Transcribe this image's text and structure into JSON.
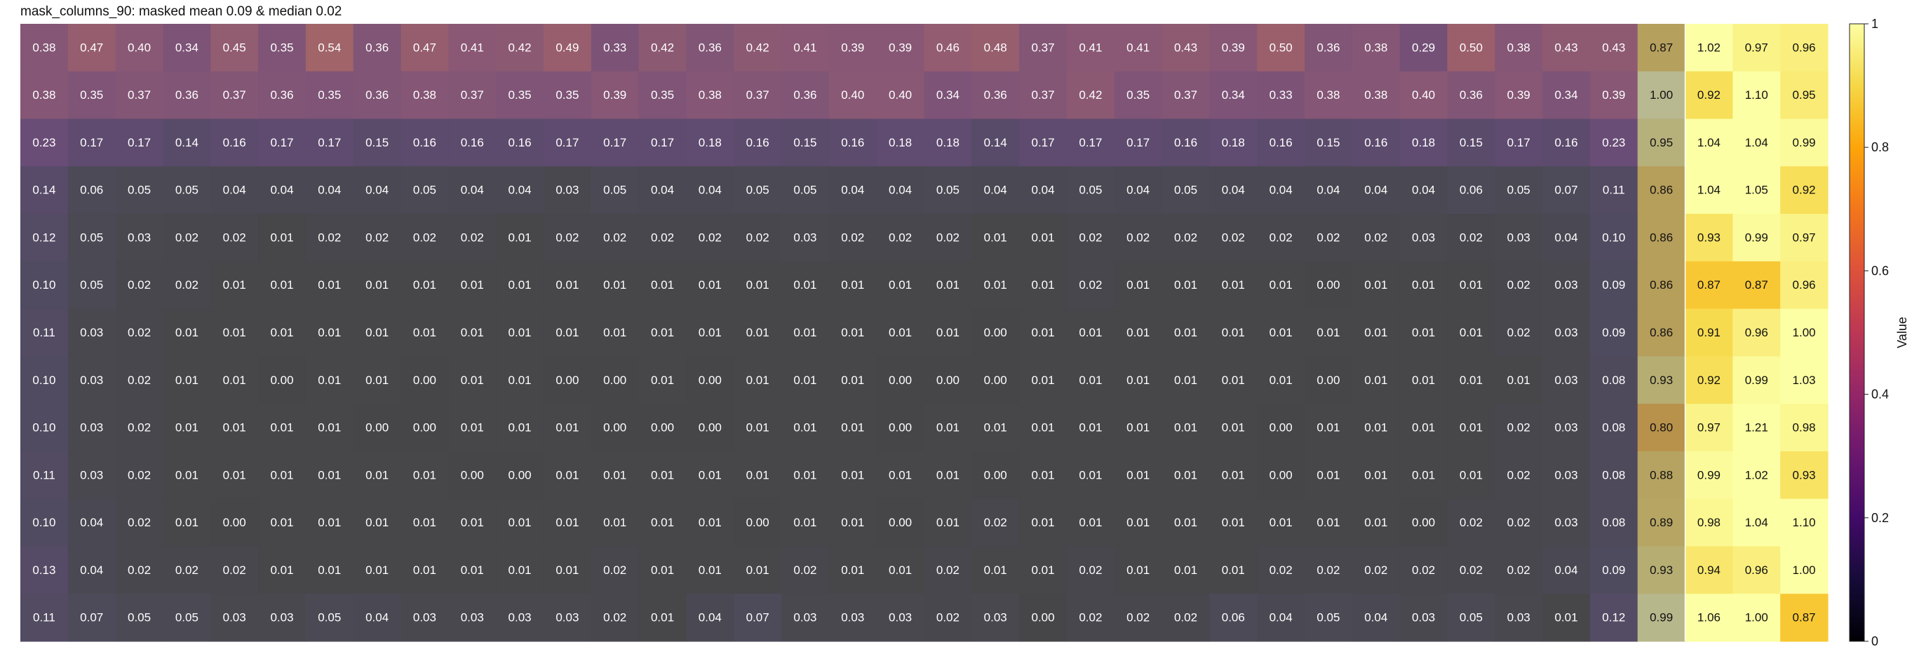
{
  "chart_data": {
    "type": "heatmap",
    "title": "mask_columns_90: masked mean 0.09 & median 0.02",
    "colormap": "inferno",
    "clim": [
      0,
      1
    ],
    "masked_overlay": {
      "columns_masked": 35,
      "overlay_color": "#808080",
      "overlay_opacity": 0.55
    },
    "values": [
      [
        0.38,
        0.47,
        0.4,
        0.34,
        0.45,
        0.35,
        0.54,
        0.36,
        0.47,
        0.41,
        0.42,
        0.49,
        0.33,
        0.42,
        0.36,
        0.42,
        0.41,
        0.39,
        0.39,
        0.46,
        0.48,
        0.37,
        0.41,
        0.41,
        0.43,
        0.39,
        0.5,
        0.36,
        0.38,
        0.29,
        0.5,
        0.38,
        0.43,
        0.43,
        0.87,
        1.02,
        0.97,
        0.96
      ],
      [
        0.38,
        0.35,
        0.37,
        0.36,
        0.37,
        0.36,
        0.35,
        0.36,
        0.38,
        0.37,
        0.35,
        0.35,
        0.39,
        0.35,
        0.38,
        0.37,
        0.36,
        0.4,
        0.4,
        0.34,
        0.36,
        0.37,
        0.42,
        0.35,
        0.37,
        0.34,
        0.33,
        0.38,
        0.38,
        0.4,
        0.36,
        0.39,
        0.34,
        0.39,
        1.0,
        0.92,
        1.1,
        0.95
      ],
      [
        0.23,
        0.17,
        0.17,
        0.14,
        0.16,
        0.17,
        0.17,
        0.15,
        0.16,
        0.16,
        0.16,
        0.17,
        0.17,
        0.17,
        0.18,
        0.16,
        0.15,
        0.16,
        0.18,
        0.18,
        0.14,
        0.17,
        0.17,
        0.17,
        0.16,
        0.18,
        0.16,
        0.15,
        0.16,
        0.18,
        0.15,
        0.17,
        0.16,
        0.23,
        0.95,
        1.04,
        1.04,
        0.99
      ],
      [
        0.14,
        0.06,
        0.05,
        0.05,
        0.04,
        0.04,
        0.04,
        0.04,
        0.05,
        0.04,
        0.04,
        0.03,
        0.05,
        0.04,
        0.04,
        0.05,
        0.05,
        0.04,
        0.04,
        0.05,
        0.04,
        0.04,
        0.05,
        0.04,
        0.05,
        0.04,
        0.04,
        0.04,
        0.04,
        0.04,
        0.06,
        0.05,
        0.07,
        0.11,
        0.86,
        1.04,
        1.05,
        0.92
      ],
      [
        0.12,
        0.05,
        0.03,
        0.02,
        0.02,
        0.01,
        0.02,
        0.02,
        0.02,
        0.02,
        0.01,
        0.02,
        0.02,
        0.02,
        0.02,
        0.02,
        0.03,
        0.02,
        0.02,
        0.02,
        0.01,
        0.01,
        0.02,
        0.02,
        0.02,
        0.02,
        0.02,
        0.02,
        0.02,
        0.03,
        0.02,
        0.03,
        0.04,
        0.1,
        0.86,
        0.93,
        0.99,
        0.97
      ],
      [
        0.1,
        0.05,
        0.02,
        0.02,
        0.01,
        0.01,
        0.01,
        0.01,
        0.01,
        0.01,
        0.01,
        0.01,
        0.01,
        0.01,
        0.01,
        0.01,
        0.01,
        0.01,
        0.01,
        0.01,
        0.01,
        0.01,
        0.02,
        0.01,
        0.01,
        0.01,
        0.01,
        0.0,
        0.01,
        0.01,
        0.01,
        0.02,
        0.03,
        0.09,
        0.86,
        0.87,
        0.87,
        0.96
      ],
      [
        0.11,
        0.03,
        0.02,
        0.01,
        0.01,
        0.01,
        0.01,
        0.01,
        0.01,
        0.01,
        0.01,
        0.01,
        0.01,
        0.01,
        0.01,
        0.01,
        0.01,
        0.01,
        0.01,
        0.01,
        0.0,
        0.01,
        0.01,
        0.01,
        0.01,
        0.01,
        0.01,
        0.01,
        0.01,
        0.01,
        0.01,
        0.02,
        0.03,
        0.09,
        0.86,
        0.91,
        0.96,
        1.0
      ],
      [
        0.1,
        0.03,
        0.02,
        0.01,
        0.01,
        0.0,
        0.01,
        0.01,
        0.0,
        0.01,
        0.01,
        0.0,
        0.0,
        0.01,
        0.0,
        0.01,
        0.01,
        0.01,
        0.0,
        0.0,
        0.0,
        0.01,
        0.01,
        0.01,
        0.01,
        0.01,
        0.01,
        0.0,
        0.01,
        0.01,
        0.01,
        0.01,
        0.03,
        0.08,
        0.93,
        0.92,
        0.99,
        1.03
      ],
      [
        0.1,
        0.03,
        0.02,
        0.01,
        0.01,
        0.01,
        0.01,
        0.0,
        0.0,
        0.01,
        0.01,
        0.01,
        0.0,
        0.0,
        0.0,
        0.01,
        0.01,
        0.01,
        0.0,
        0.01,
        0.01,
        0.01,
        0.01,
        0.01,
        0.01,
        0.01,
        0.0,
        0.01,
        0.01,
        0.01,
        0.01,
        0.02,
        0.03,
        0.08,
        0.8,
        0.97,
        1.21,
        0.98
      ],
      [
        0.11,
        0.03,
        0.02,
        0.01,
        0.01,
        0.01,
        0.01,
        0.01,
        0.01,
        0.0,
        0.0,
        0.01,
        0.01,
        0.01,
        0.01,
        0.01,
        0.01,
        0.01,
        0.01,
        0.01,
        0.0,
        0.01,
        0.01,
        0.01,
        0.01,
        0.01,
        0.0,
        0.01,
        0.01,
        0.01,
        0.01,
        0.02,
        0.03,
        0.08,
        0.88,
        0.99,
        1.02,
        0.93
      ],
      [
        0.1,
        0.04,
        0.02,
        0.01,
        0.0,
        0.01,
        0.01,
        0.01,
        0.01,
        0.01,
        0.01,
        0.01,
        0.01,
        0.01,
        0.01,
        0.0,
        0.01,
        0.01,
        0.0,
        0.01,
        0.02,
        0.01,
        0.01,
        0.01,
        0.01,
        0.01,
        0.01,
        0.01,
        0.01,
        0.0,
        0.02,
        0.02,
        0.03,
        0.08,
        0.89,
        0.98,
        1.04,
        1.1
      ],
      [
        0.13,
        0.04,
        0.02,
        0.02,
        0.02,
        0.01,
        0.01,
        0.01,
        0.01,
        0.01,
        0.01,
        0.01,
        0.02,
        0.01,
        0.01,
        0.01,
        0.02,
        0.01,
        0.01,
        0.02,
        0.01,
        0.01,
        0.02,
        0.01,
        0.01,
        0.01,
        0.02,
        0.02,
        0.02,
        0.02,
        0.02,
        0.02,
        0.04,
        0.09,
        0.93,
        0.94,
        0.96,
        1.0
      ],
      [
        0.11,
        0.07,
        0.05,
        0.05,
        0.03,
        0.03,
        0.05,
        0.04,
        0.03,
        0.03,
        0.03,
        0.03,
        0.02,
        0.01,
        0.04,
        0.07,
        0.03,
        0.03,
        0.03,
        0.02,
        0.03,
        0.0,
        0.02,
        0.02,
        0.02,
        0.06,
        0.04,
        0.05,
        0.04,
        0.03,
        0.05,
        0.03,
        0.01,
        0.12,
        0.99,
        1.06,
        1.0,
        0.87
      ]
    ],
    "colorbar": {
      "label": "Value",
      "ticks": [
        0,
        0.2,
        0.4,
        0.6,
        0.8,
        1
      ],
      "tick_labels": [
        "0",
        "0.2",
        "0.4",
        "0.6",
        "0.8",
        "1"
      ]
    }
  }
}
